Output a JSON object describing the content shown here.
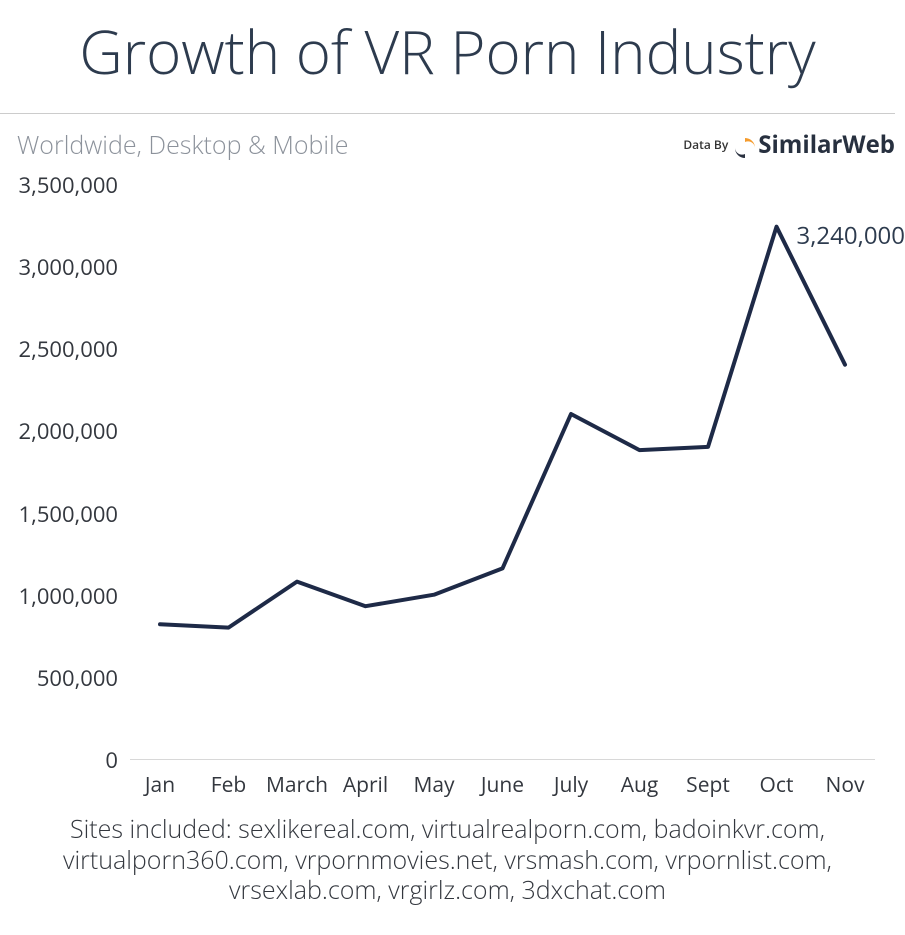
{
  "title": "Growth of VR Porn Industry",
  "subtitle": "Worldwide, Desktop & Mobile",
  "brand": {
    "prefix": "Data By",
    "name": "SimilarWeb"
  },
  "chart": {
    "type": "line",
    "line_color": "#1e2a47",
    "line_width": 4,
    "background_color": "#ffffff",
    "axis_line_color": "#d8d8d8",
    "text_color": "#33373e",
    "ylim": [
      0,
      3500000
    ],
    "yticks": [
      0,
      500000,
      1000000,
      1500000,
      2000000,
      2500000,
      3000000,
      3500000
    ],
    "ytick_labels": [
      "0",
      "500,000",
      "1,000,000",
      "1,500,000",
      "2,000,000",
      "2,500,000",
      "3,000,000",
      "3,500,000"
    ],
    "ytick_fontsize": 22,
    "x_categories": [
      "Jan",
      "Feb",
      "March",
      "April",
      "May",
      "June",
      "July",
      "Aug",
      "Sept",
      "Oct",
      "Nov"
    ],
    "xtick_fontsize": 21,
    "values": [
      820000,
      800000,
      1080000,
      930000,
      1000000,
      1160000,
      2100000,
      1880000,
      1900000,
      3240000,
      2400000
    ],
    "callout_index": 9,
    "callout_label": "3,240,000",
    "callout_fontsize": 24
  },
  "footer": "Sites included: sexlikereal.com, virtualrealporn.com, badoinkvr.com, virtualporn360.com, vrpornmovies.net, vrsmash.com, vrpornlist.com, vrsexlab.com, vrgirlz.com, 3dxchat.com"
}
